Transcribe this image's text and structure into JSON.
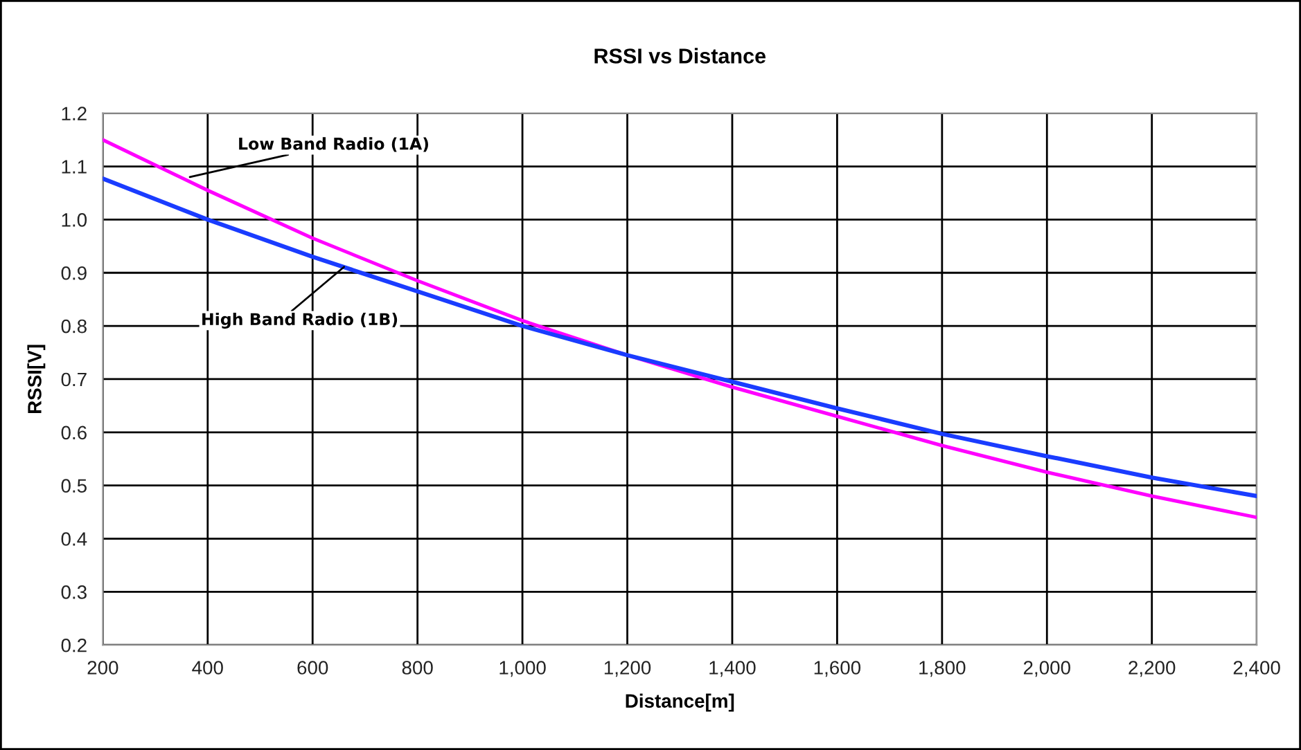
{
  "chart_data": {
    "type": "line",
    "title": "RSSI vs Distance",
    "xlabel": "Distance[m]",
    "ylabel": "RSSI[V]",
    "x": [
      200,
      400,
      600,
      800,
      1000,
      1200,
      1400,
      1600,
      1800,
      2000,
      2200,
      2400
    ],
    "series": [
      {
        "name": "Low Band Radio (1A)",
        "color": "#ff00ff",
        "values": [
          1.15,
          1.055,
          0.965,
          0.885,
          0.81,
          0.745,
          0.685,
          0.63,
          0.575,
          0.525,
          0.48,
          0.44
        ]
      },
      {
        "name": "High Band Radio (1B)",
        "color": "#1a3cff",
        "values": [
          1.077,
          1.0,
          0.93,
          0.865,
          0.8,
          0.745,
          0.695,
          0.645,
          0.597,
          0.555,
          0.515,
          0.48
        ]
      }
    ],
    "xlim": [
      200,
      2400
    ],
    "xticks": [
      {
        "value": 200,
        "label": "200"
      },
      {
        "value": 400,
        "label": "400"
      },
      {
        "value": 600,
        "label": "600"
      },
      {
        "value": 800,
        "label": "800"
      },
      {
        "value": 1000,
        "label": "1,000"
      },
      {
        "value": 1200,
        "label": "1,200"
      },
      {
        "value": 1400,
        "label": "1,400"
      },
      {
        "value": 1600,
        "label": "1,600"
      },
      {
        "value": 1800,
        "label": "1,800"
      },
      {
        "value": 2000,
        "label": "2,000"
      },
      {
        "value": 2200,
        "label": "2,200"
      },
      {
        "value": 2400,
        "label": "2,400"
      }
    ],
    "ylim": [
      0.2,
      1.2
    ],
    "yticks": [
      {
        "value": 0.2,
        "label": "0.2"
      },
      {
        "value": 0.3,
        "label": "0.3"
      },
      {
        "value": 0.4,
        "label": "0.4"
      },
      {
        "value": 0.5,
        "label": "0.5"
      },
      {
        "value": 0.6,
        "label": "0.6"
      },
      {
        "value": 0.7,
        "label": "0.7"
      },
      {
        "value": 0.8,
        "label": "0.8"
      },
      {
        "value": 0.9,
        "label": "0.9"
      },
      {
        "value": 1.0,
        "label": "1.0"
      },
      {
        "value": 1.1,
        "label": "1.1"
      },
      {
        "value": 1.2,
        "label": "1.2"
      }
    ],
    "grid": true,
    "marker": "none",
    "line_style": "solid",
    "legend": false
  }
}
